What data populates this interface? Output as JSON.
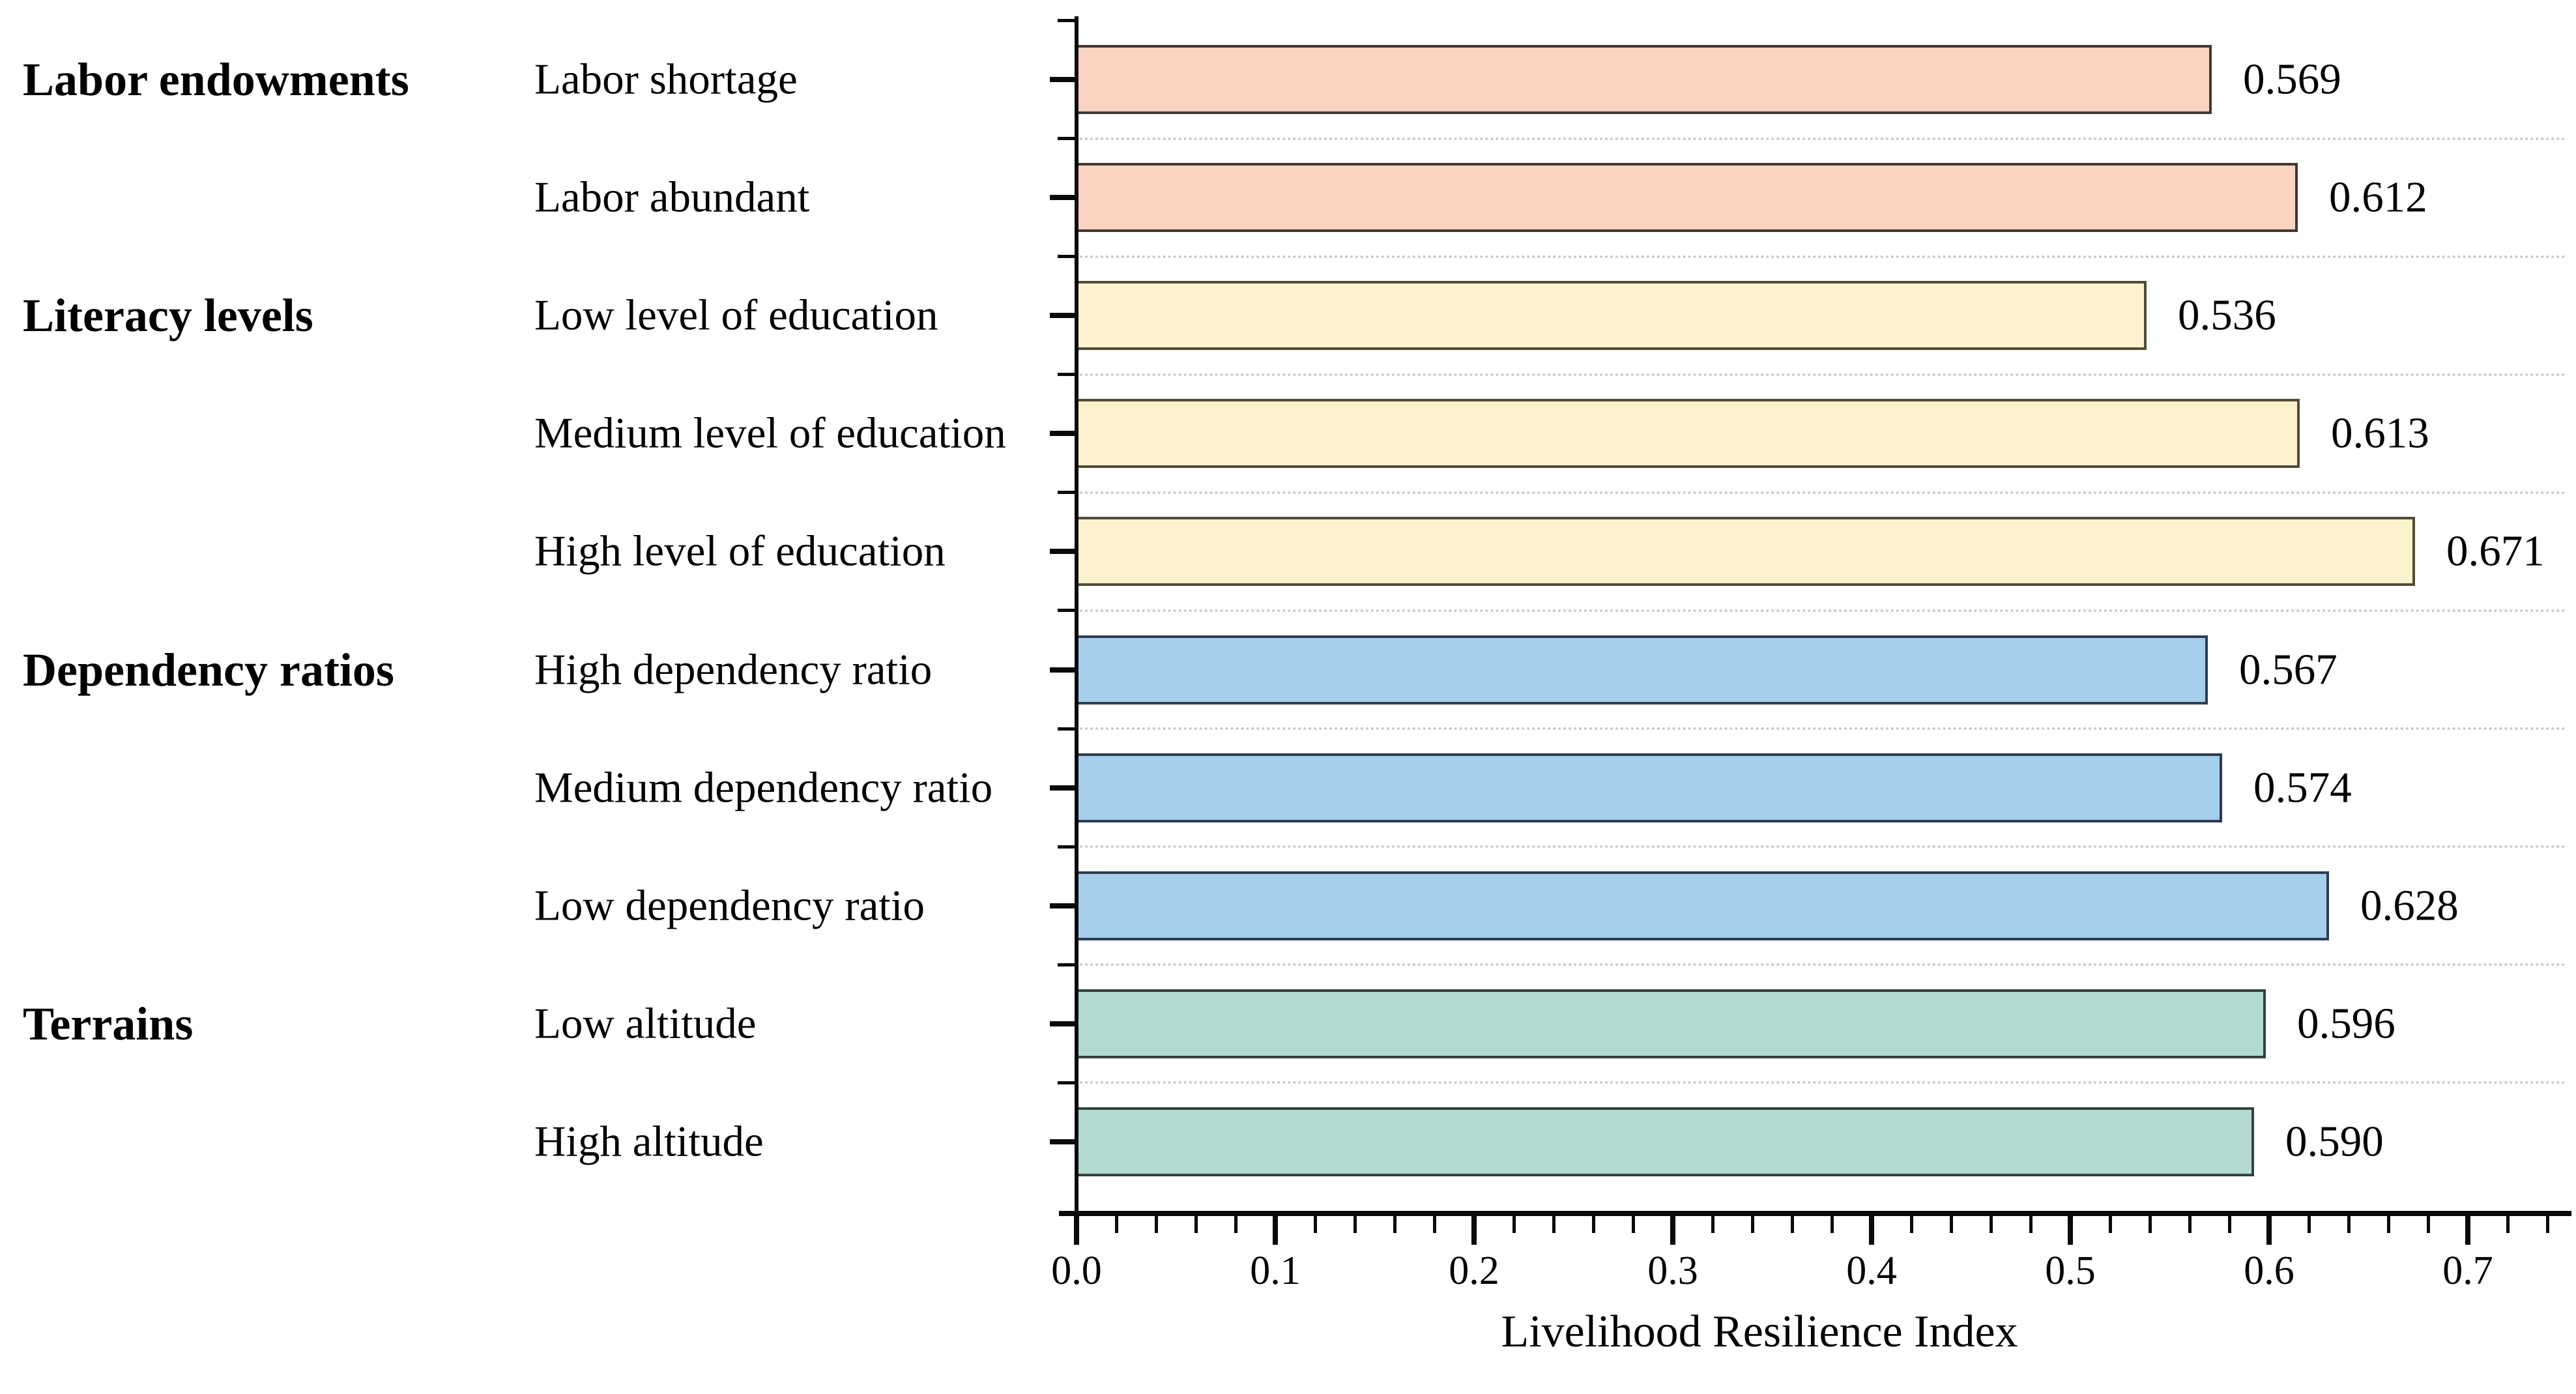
{
  "chart_data": {
    "type": "bar",
    "orientation": "horizontal",
    "xlabel": "Livelihood Resilience Index",
    "xlim": [
      0.0,
      0.75
    ],
    "x_major_tick_step": 0.1,
    "x_minor_tick_step": 0.02,
    "x_tick_labels": [
      "0.0",
      "0.1",
      "0.2",
      "0.3",
      "0.4",
      "0.5",
      "0.6",
      "0.7"
    ],
    "grid": "dotted horizontal separators between bars",
    "value_labels_shown": true,
    "legend_position": "none",
    "colors": {
      "axis": "#0a0a0a",
      "gridline": "#c9c9c9",
      "text": "#000000"
    },
    "groups": [
      {
        "name": "Labor endowments",
        "fill": "#FAD4C0",
        "border": "#423733",
        "items": [
          {
            "category": "Labor shortage",
            "value": 0.569,
            "value_label": "0.569"
          },
          {
            "category": "Labor abundant",
            "value": 0.612,
            "value_label": "0.612"
          }
        ]
      },
      {
        "name": "Literacy levels",
        "fill": "#FCF2CD",
        "border": "#514B36",
        "items": [
          {
            "category": "Low level of education",
            "value": 0.536,
            "value_label": "0.536"
          },
          {
            "category": "Medium level of education",
            "value": 0.613,
            "value_label": "0.613"
          },
          {
            "category": "High level of education",
            "value": 0.671,
            "value_label": "0.671"
          }
        ]
      },
      {
        "name": "Dependency ratios",
        "fill": "#A5CDEC",
        "border": "#2D3C51",
        "items": [
          {
            "category": "High dependency ratio",
            "value": 0.567,
            "value_label": "0.567"
          },
          {
            "category": "Medium dependency ratio",
            "value": 0.574,
            "value_label": "0.574"
          },
          {
            "category": "Low dependency ratio",
            "value": 0.628,
            "value_label": "0.628"
          }
        ]
      },
      {
        "name": "Terrains",
        "fill": "#B3DBD1",
        "border": "#32423E",
        "items": [
          {
            "category": "Low altitude",
            "value": 0.596,
            "value_label": "0.596"
          },
          {
            "category": "High altitude",
            "value": 0.59,
            "value_label": "0.590"
          }
        ]
      }
    ]
  }
}
